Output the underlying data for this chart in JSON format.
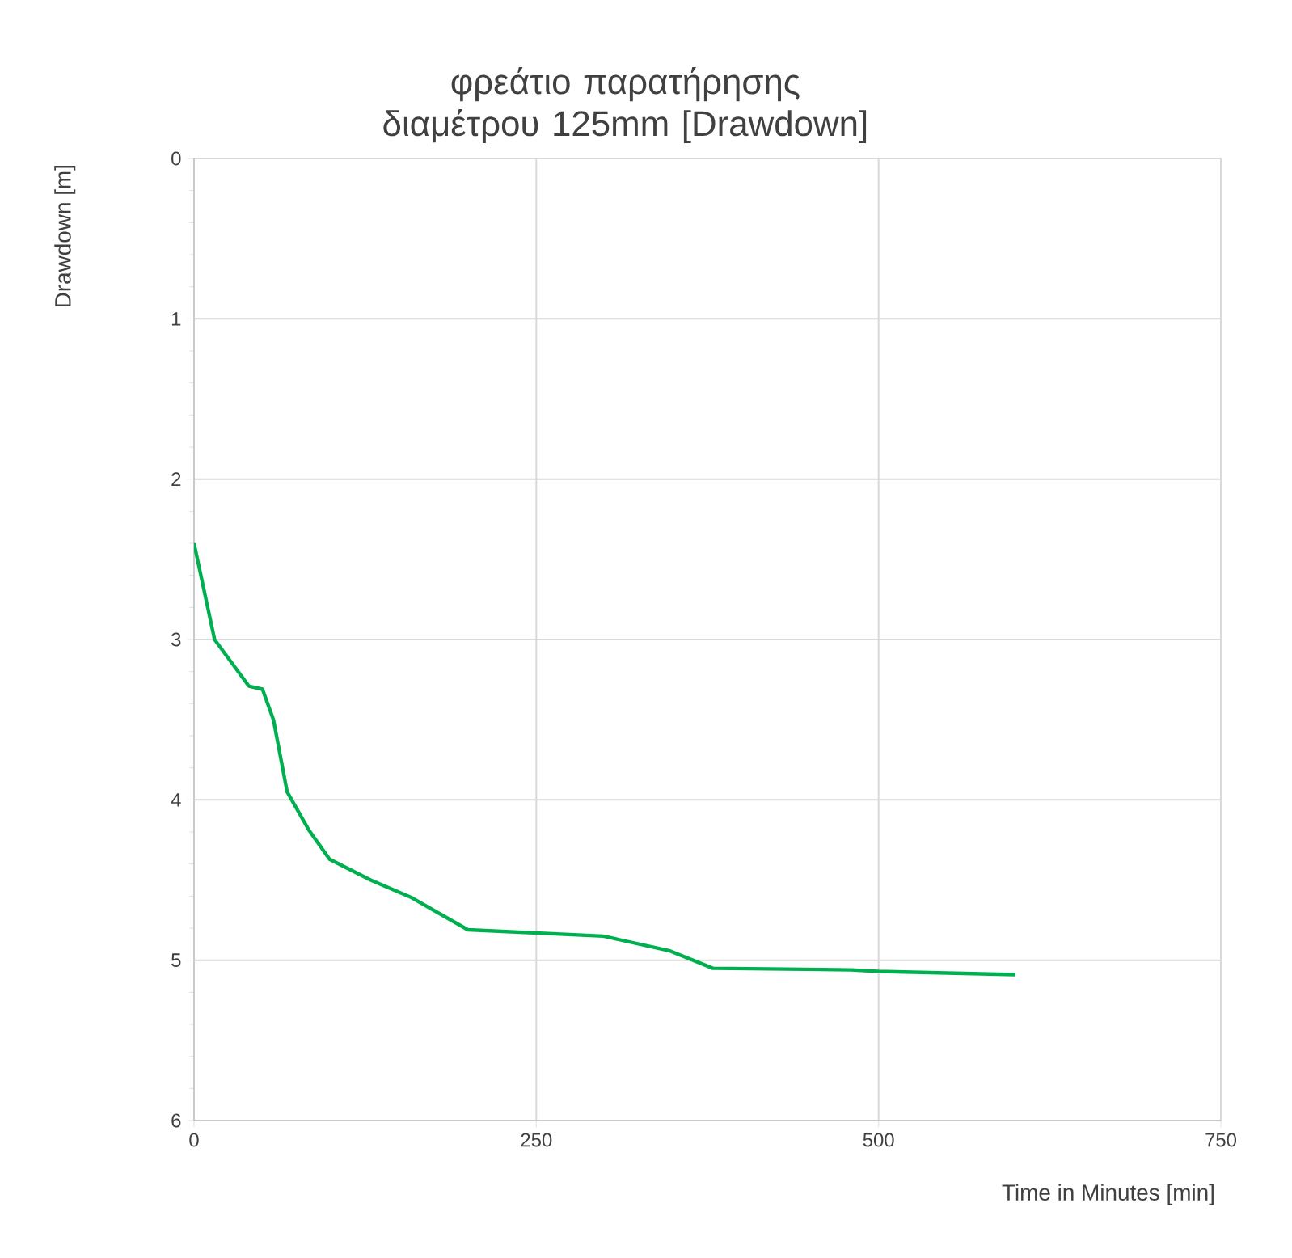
{
  "chart_data": {
    "type": "line",
    "title": "φρεάτιο παρατήρησης διαμέτρου 125mm [Drawdown]",
    "xlabel": "Time in Minutes [min]",
    "ylabel": "Drawdown [m]",
    "x": [
      0,
      15,
      40,
      50,
      58,
      68,
      84,
      99,
      129,
      159,
      200,
      299,
      347,
      379,
      480,
      500,
      600
    ],
    "series": [
      {
        "color": "#00b050",
        "values": [
          2.4,
          3.0,
          3.29,
          3.31,
          3.5,
          3.95,
          4.19,
          4.37,
          4.5,
          4.61,
          4.81,
          4.85,
          4.94,
          5.05,
          5.06,
          5.07,
          5.09
        ]
      }
    ],
    "xlim": [
      0,
      750
    ],
    "xticks": [
      0,
      250,
      500,
      750
    ],
    "ylim": [
      6,
      0
    ],
    "yticks": [
      0,
      1,
      2,
      3,
      4,
      5,
      6
    ],
    "grid": true,
    "marker": "none",
    "line_style": "solid"
  }
}
